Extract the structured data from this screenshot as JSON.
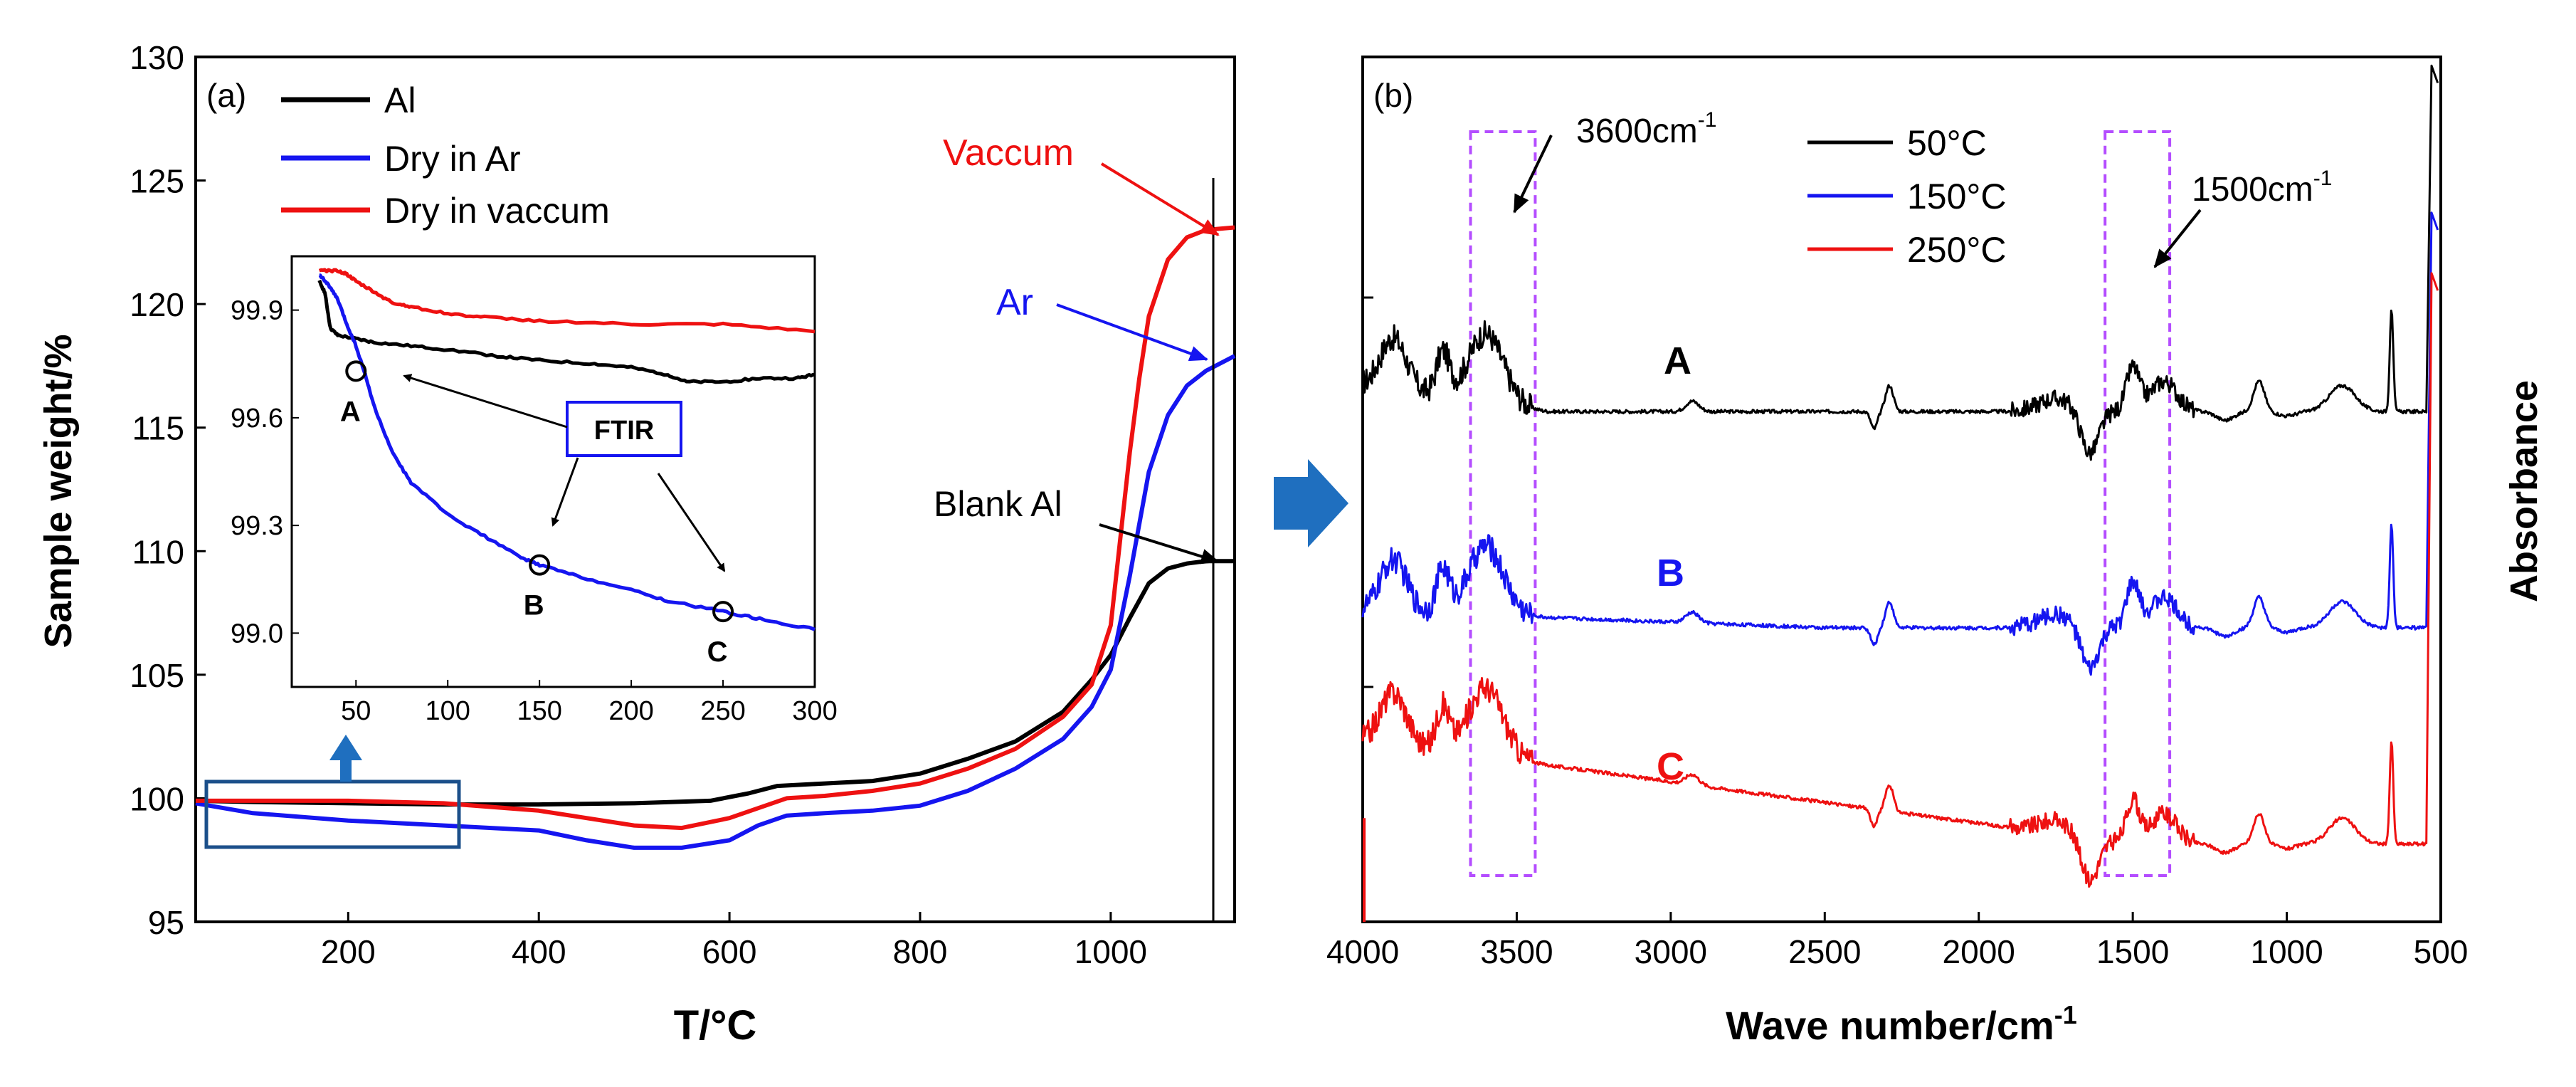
{
  "colors": {
    "al": "#000000",
    "ar": "#1515f0",
    "vac": "#ee1111",
    "purple": "#b44dff",
    "arrow_blue": "#1f6fbf",
    "box": "#1b4f8a",
    "axis": "#000000"
  },
  "chart_data": [
    {
      "panel": "(a)",
      "type": "line",
      "title": "",
      "xlabel": "T/°C",
      "ylabel": "Sample weight/%",
      "xlim": [
        40,
        1130
      ],
      "ylim": [
        95,
        130
      ],
      "xticks": [
        "200",
        "400",
        "600",
        "800",
        "1000"
      ],
      "yticks": [
        "95",
        "100",
        "105",
        "110",
        "115",
        "120",
        "125",
        "130"
      ],
      "grid": false,
      "legend_position": "top-left",
      "series": [
        {
          "name": "Al",
          "color_key": "al",
          "x": [
            40,
            100,
            200,
            300,
            400,
            500,
            580,
            620,
            650,
            700,
            750,
            800,
            850,
            900,
            950,
            980,
            1000,
            1020,
            1040,
            1060,
            1080,
            1100,
            1130
          ],
          "y": [
            99.9,
            99.85,
            99.8,
            99.75,
            99.75,
            99.8,
            99.9,
            100.2,
            100.5,
            100.6,
            100.7,
            101.0,
            101.6,
            102.3,
            103.5,
            104.8,
            105.8,
            107.3,
            108.7,
            109.3,
            109.5,
            109.6,
            109.6
          ]
        },
        {
          "name": "Dry in Ar",
          "color_key": "ar",
          "x": [
            40,
            100,
            200,
            300,
            400,
            450,
            500,
            550,
            600,
            630,
            660,
            700,
            750,
            800,
            850,
            900,
            950,
            980,
            1000,
            1020,
            1040,
            1060,
            1080,
            1100,
            1130
          ],
          "y": [
            99.8,
            99.4,
            99.1,
            98.9,
            98.7,
            98.3,
            98.0,
            98.0,
            98.3,
            98.9,
            99.3,
            99.4,
            99.5,
            99.7,
            100.3,
            101.2,
            102.4,
            103.7,
            105.2,
            109.0,
            113.2,
            115.5,
            116.7,
            117.3,
            117.9
          ]
        },
        {
          "name": "Dry in vaccum",
          "color_key": "vac",
          "x": [
            40,
            100,
            200,
            300,
            400,
            450,
            500,
            550,
            600,
            630,
            660,
            700,
            750,
            800,
            850,
            900,
            950,
            980,
            1000,
            1010,
            1020,
            1030,
            1040,
            1060,
            1080,
            1100,
            1130
          ],
          "y": [
            99.9,
            99.9,
            99.9,
            99.8,
            99.5,
            99.2,
            98.9,
            98.8,
            99.2,
            99.6,
            100.0,
            100.1,
            100.3,
            100.6,
            101.2,
            102.0,
            103.3,
            104.6,
            107.0,
            110.5,
            114.0,
            117.0,
            119.5,
            121.8,
            122.7,
            123.0,
            123.1
          ]
        }
      ],
      "annotations": [
        {
          "text": "Vaccum",
          "color_key": "vac"
        },
        {
          "text": "Ar",
          "color_key": "ar"
        },
        {
          "text": "Blank Al",
          "color_key": "al"
        }
      ],
      "inset": {
        "xlim": [
          15,
          300
        ],
        "ylim": [
          98.85,
          100.05
        ],
        "xticks": [
          "50",
          "100",
          "150",
          "200",
          "250",
          "300"
        ],
        "yticks": [
          "99.0",
          "99.3",
          "99.6",
          "99.9"
        ],
        "series": [
          {
            "name": "Al",
            "color_key": "al",
            "x": [
              30,
              33,
              36,
              40,
              50,
              60,
              80,
              100,
              130,
              150,
              180,
              200,
              220,
              230,
              250,
              270,
              290,
              300
            ],
            "y": [
              99.98,
              99.95,
              99.85,
              99.83,
              99.82,
              99.81,
              99.8,
              99.79,
              99.77,
              99.76,
              99.75,
              99.74,
              99.72,
              99.7,
              99.7,
              99.71,
              99.71,
              99.72
            ]
          },
          {
            "name": "Dry in Ar",
            "color_key": "ar",
            "x": [
              30,
              35,
              40,
              45,
              50,
              55,
              60,
              70,
              80,
              100,
              120,
              140,
              150,
              170,
              200,
              220,
              250,
              270,
              300
            ],
            "y": [
              100.0,
              99.97,
              99.93,
              99.86,
              99.8,
              99.72,
              99.63,
              99.5,
              99.42,
              99.33,
              99.27,
              99.21,
              99.19,
              99.16,
              99.12,
              99.09,
              99.06,
              99.04,
              99.01
            ]
          },
          {
            "name": "Dry in vaccum",
            "color_key": "vac",
            "x": [
              30,
              40,
              45,
              50,
              60,
              70,
              80,
              100,
              120,
              150,
              200,
              250,
              300
            ],
            "y": [
              100.01,
              100.01,
              100.0,
              99.98,
              99.95,
              99.92,
              99.91,
              99.89,
              99.88,
              99.87,
              99.86,
              99.86,
              99.84
            ]
          }
        ],
        "points": [
          {
            "label": "A",
            "x": 50,
            "y": 99.73
          },
          {
            "label": "B",
            "x": 150,
            "y": 99.19
          },
          {
            "label": "C",
            "x": 250,
            "y": 99.06
          }
        ],
        "callout": "FTIR"
      }
    },
    {
      "panel": "(b)",
      "type": "line",
      "title": "",
      "xlabel": "Wave number/cm-1",
      "ylabel": "Absorbance",
      "xlim": [
        4000,
        500
      ],
      "ylim": [
        0,
        1
      ],
      "xticks": [
        "4000",
        "3500",
        "3000",
        "2500",
        "2000",
        "1500",
        "1000",
        "500"
      ],
      "grid": false,
      "legend_position": "top-center",
      "series": [
        {
          "name": "50°C",
          "curve_label": "A",
          "color_key": "al",
          "baseline": 0.59
        },
        {
          "name": "150°C",
          "curve_label": "B",
          "color_key": "ar",
          "baseline": 0.34
        },
        {
          "name": "250°C",
          "curve_label": "C",
          "color_key": "vac",
          "baseline": 0.1
        }
      ],
      "highlight_bands": [
        {
          "from": 3650,
          "to": 3440
        },
        {
          "from": 1590,
          "to": 1380
        }
      ],
      "annotations": [
        {
          "text": "3600cm",
          "sup": "-1"
        },
        {
          "text": "1500cm",
          "sup": "-1"
        }
      ]
    }
  ],
  "arrow_between_panels": "right-arrow"
}
